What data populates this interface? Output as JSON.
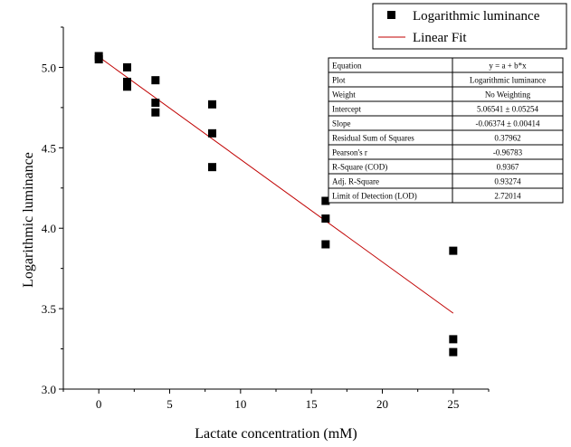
{
  "chart_data": {
    "type": "scatter",
    "title": "",
    "xlabel": "Lactate concentration (mM)",
    "ylabel": "Logarithmic luminance",
    "xlim": [
      -2.5,
      27.5
    ],
    "ylim": [
      3.0,
      5.25
    ],
    "x_ticks": [
      0,
      5,
      10,
      15,
      20,
      25
    ],
    "y_ticks": [
      3.0,
      3.5,
      4.0,
      4.5,
      5.0
    ],
    "x_tick_labels": [
      "0",
      "5",
      "10",
      "15",
      "20",
      "25"
    ],
    "y_tick_labels": [
      "3.0",
      "3.5",
      "4.0",
      "4.5",
      "5.0"
    ],
    "grid": false,
    "legend_position": "top-right",
    "series": [
      {
        "name": "Logarithmic luminance",
        "kind": "scatter",
        "marker": "square",
        "color": "#000000",
        "points": [
          {
            "x": 0,
            "y": 5.07
          },
          {
            "x": 0,
            "y": 5.05
          },
          {
            "x": 2,
            "y": 5.0
          },
          {
            "x": 2,
            "y": 4.91
          },
          {
            "x": 2,
            "y": 4.88
          },
          {
            "x": 4,
            "y": 4.92
          },
          {
            "x": 4,
            "y": 4.78
          },
          {
            "x": 4,
            "y": 4.72
          },
          {
            "x": 8,
            "y": 4.77
          },
          {
            "x": 8,
            "y": 4.59
          },
          {
            "x": 8,
            "y": 4.38
          },
          {
            "x": 16,
            "y": 4.17
          },
          {
            "x": 16,
            "y": 4.06
          },
          {
            "x": 16,
            "y": 3.9
          },
          {
            "x": 25,
            "y": 3.86
          },
          {
            "x": 25,
            "y": 3.31
          },
          {
            "x": 25,
            "y": 3.23
          }
        ]
      },
      {
        "name": "Linear Fit",
        "kind": "line",
        "color": "#c00000",
        "intercept": 5.06541,
        "slope": -0.06374,
        "x_range": [
          0,
          25
        ]
      }
    ],
    "fit_table": [
      {
        "label": "Equation",
        "value": "y = a + b*x"
      },
      {
        "label": "Plot",
        "value": "Logarithmic luminance"
      },
      {
        "label": "Weight",
        "value": "No Weighting"
      },
      {
        "label": "Intercept",
        "value": "5.06541 ± 0.05254"
      },
      {
        "label": "Slope",
        "value": "-0.06374 ± 0.00414"
      },
      {
        "label": "Residual Sum of Squares",
        "value": "0.37962"
      },
      {
        "label": "Pearson's r",
        "value": "-0.96783"
      },
      {
        "label": "R-Square (COD)",
        "value": "0.9367"
      },
      {
        "label": "Adj. R-Square",
        "value": "0.93274"
      },
      {
        "label": "Limit of Detection (LOD)",
        "value": "2.72014"
      }
    ]
  }
}
